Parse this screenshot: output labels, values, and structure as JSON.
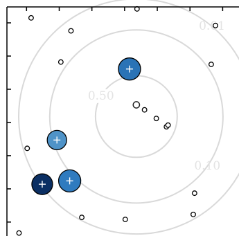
{
  "chart_data": {
    "type": "scatter",
    "title": "",
    "xlabel": "",
    "ylabel": "",
    "grid": false,
    "axis_ticks": {
      "x": [
        -3,
        -2,
        -1,
        0,
        1,
        2,
        3
      ],
      "y": [
        -3,
        -2,
        -1,
        0,
        1,
        2,
        3
      ]
    },
    "xlim": [
      -3.6,
      3.5
    ],
    "ylim": [
      -3.42,
      3.48
    ],
    "contours": {
      "center": [
        0.36,
        0.18
      ],
      "levels": [
        {
          "label": "0.50",
          "radius": 1.25
        },
        {
          "label": "0.10",
          "radius": 2.65
        },
        {
          "label": "0.01",
          "radius": 3.6
        }
      ]
    },
    "observations": [
      {
        "x": -2.86,
        "y": 3.15
      },
      {
        "x": -1.64,
        "y": 2.76
      },
      {
        "x": 0.38,
        "y": 3.42
      },
      {
        "x": 2.78,
        "y": 2.92
      },
      {
        "x": -1.95,
        "y": 1.82
      },
      {
        "x": 2.65,
        "y": 1.75
      },
      {
        "x": 0.61,
        "y": 0.38
      },
      {
        "x": 0.97,
        "y": 0.12
      },
      {
        "x": 1.28,
        "y": -0.13
      },
      {
        "x": 1.33,
        "y": -0.08
      },
      {
        "x": -2.98,
        "y": -0.78
      },
      {
        "x": 2.14,
        "y": -2.13
      },
      {
        "x": 2.1,
        "y": -2.77
      },
      {
        "x": -1.31,
        "y": -2.86
      },
      {
        "x": 0.02,
        "y": -2.92
      },
      {
        "x": -3.23,
        "y": -3.33
      }
    ],
    "center_point": {
      "x": 0.36,
      "y": 0.53
    },
    "sources": [
      {
        "x": 0.15,
        "y": 1.61,
        "color": "#2a73b6",
        "size": 16
      },
      {
        "x": -2.07,
        "y": -0.53,
        "color": "#4f93c8",
        "size": 14
      },
      {
        "x": -2.52,
        "y": -1.86,
        "color": "#0b2f63",
        "size": 15
      },
      {
        "x": -1.68,
        "y": -1.76,
        "color": "#2f7bbf",
        "size": 16
      }
    ]
  }
}
